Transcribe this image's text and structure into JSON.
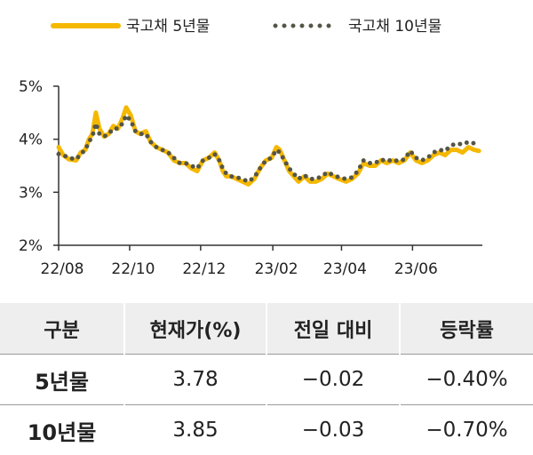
{
  "chart_data": {
    "type": "line",
    "title": "",
    "xlabel": "",
    "ylabel": "",
    "y_tick_labels": [
      "5%",
      "4%",
      "3%",
      "2%"
    ],
    "y_ticks": [
      5,
      4,
      3,
      2
    ],
    "ylim": [
      2,
      5
    ],
    "x_tick_labels": [
      "22/08",
      "22/10",
      "22/12",
      "23/02",
      "23/04",
      "23/06"
    ],
    "x_ticks": [
      "2022-08-01",
      "2022-10-01",
      "2022-12-01",
      "2023-02-01",
      "2023-04-01",
      "2023-06-01"
    ],
    "xlim": [
      "2022-08-01",
      "2023-07-31"
    ],
    "grid": false,
    "legend_position": "top",
    "series": [
      {
        "name": "국고채 5년물",
        "color": "#f5b800",
        "style": "solid",
        "points": [
          [
            "2022-08-01",
            3.85
          ],
          [
            "2022-08-05",
            3.7
          ],
          [
            "2022-08-10",
            3.62
          ],
          [
            "2022-08-16",
            3.6
          ],
          [
            "2022-08-20",
            3.75
          ],
          [
            "2022-08-24",
            3.8
          ],
          [
            "2022-08-27",
            4.0
          ],
          [
            "2022-08-30",
            4.1
          ],
          [
            "2022-09-02",
            4.5
          ],
          [
            "2022-09-05",
            4.2
          ],
          [
            "2022-09-09",
            4.05
          ],
          [
            "2022-09-13",
            4.1
          ],
          [
            "2022-09-17",
            4.25
          ],
          [
            "2022-09-21",
            4.2
          ],
          [
            "2022-09-25",
            4.4
          ],
          [
            "2022-09-28",
            4.6
          ],
          [
            "2022-10-02",
            4.45
          ],
          [
            "2022-10-06",
            4.15
          ],
          [
            "2022-10-10",
            4.1
          ],
          [
            "2022-10-15",
            4.15
          ],
          [
            "2022-10-19",
            3.95
          ],
          [
            "2022-10-24",
            3.85
          ],
          [
            "2022-10-29",
            3.8
          ],
          [
            "2022-11-03",
            3.75
          ],
          [
            "2022-11-08",
            3.6
          ],
          [
            "2022-11-13",
            3.55
          ],
          [
            "2022-11-18",
            3.55
          ],
          [
            "2022-11-23",
            3.45
          ],
          [
            "2022-11-28",
            3.4
          ],
          [
            "2022-12-03",
            3.6
          ],
          [
            "2022-12-08",
            3.65
          ],
          [
            "2022-12-13",
            3.75
          ],
          [
            "2022-12-17",
            3.6
          ],
          [
            "2022-12-20",
            3.4
          ],
          [
            "2022-12-23",
            3.3
          ],
          [
            "2022-12-27",
            3.3
          ],
          [
            "2023-01-01",
            3.25
          ],
          [
            "2023-01-06",
            3.2
          ],
          [
            "2023-01-11",
            3.15
          ],
          [
            "2023-01-16",
            3.25
          ],
          [
            "2023-01-21",
            3.45
          ],
          [
            "2023-01-26",
            3.6
          ],
          [
            "2023-01-31",
            3.65
          ],
          [
            "2023-02-04",
            3.85
          ],
          [
            "2023-02-07",
            3.8
          ],
          [
            "2023-02-11",
            3.6
          ],
          [
            "2023-02-15",
            3.4
          ],
          [
            "2023-02-19",
            3.3
          ],
          [
            "2023-02-23",
            3.2
          ],
          [
            "2023-02-28",
            3.3
          ],
          [
            "2023-03-05",
            3.2
          ],
          [
            "2023-03-10",
            3.2
          ],
          [
            "2023-03-15",
            3.25
          ],
          [
            "2023-03-20",
            3.35
          ],
          [
            "2023-03-25",
            3.3
          ],
          [
            "2023-03-30",
            3.25
          ],
          [
            "2023-04-05",
            3.2
          ],
          [
            "2023-04-10",
            3.25
          ],
          [
            "2023-04-15",
            3.35
          ],
          [
            "2023-04-20",
            3.55
          ],
          [
            "2023-04-25",
            3.5
          ],
          [
            "2023-04-30",
            3.5
          ],
          [
            "2023-05-05",
            3.6
          ],
          [
            "2023-05-10",
            3.55
          ],
          [
            "2023-05-15",
            3.6
          ],
          [
            "2023-05-20",
            3.55
          ],
          [
            "2023-05-25",
            3.6
          ],
          [
            "2023-05-30",
            3.75
          ],
          [
            "2023-06-04",
            3.6
          ],
          [
            "2023-06-09",
            3.55
          ],
          [
            "2023-06-14",
            3.6
          ],
          [
            "2023-06-19",
            3.7
          ],
          [
            "2023-06-24",
            3.75
          ],
          [
            "2023-06-29",
            3.7
          ],
          [
            "2023-07-04",
            3.8
          ],
          [
            "2023-07-09",
            3.8
          ],
          [
            "2023-07-14",
            3.75
          ],
          [
            "2023-07-19",
            3.85
          ],
          [
            "2023-07-24",
            3.8
          ],
          [
            "2023-07-28",
            3.78
          ]
        ]
      },
      {
        "name": "국고채 10년물",
        "color": "#555547",
        "style": "dotted",
        "points": [
          [
            "2022-08-01",
            3.72
          ],
          [
            "2022-08-05",
            3.7
          ],
          [
            "2022-08-10",
            3.65
          ],
          [
            "2022-08-16",
            3.62
          ],
          [
            "2022-08-20",
            3.72
          ],
          [
            "2022-08-24",
            3.8
          ],
          [
            "2022-08-27",
            3.95
          ],
          [
            "2022-08-30",
            4.05
          ],
          [
            "2022-09-02",
            4.3
          ],
          [
            "2022-09-05",
            4.1
          ],
          [
            "2022-09-09",
            4.05
          ],
          [
            "2022-09-13",
            4.1
          ],
          [
            "2022-09-17",
            4.2
          ],
          [
            "2022-09-21",
            4.2
          ],
          [
            "2022-09-25",
            4.3
          ],
          [
            "2022-09-28",
            4.45
          ],
          [
            "2022-10-02",
            4.35
          ],
          [
            "2022-10-06",
            4.15
          ],
          [
            "2022-10-10",
            4.1
          ],
          [
            "2022-10-15",
            4.1
          ],
          [
            "2022-10-19",
            3.95
          ],
          [
            "2022-10-24",
            3.85
          ],
          [
            "2022-10-29",
            3.8
          ],
          [
            "2022-11-03",
            3.75
          ],
          [
            "2022-11-08",
            3.65
          ],
          [
            "2022-11-13",
            3.55
          ],
          [
            "2022-11-18",
            3.55
          ],
          [
            "2022-11-23",
            3.5
          ],
          [
            "2022-11-28",
            3.45
          ],
          [
            "2022-12-03",
            3.6
          ],
          [
            "2022-12-08",
            3.65
          ],
          [
            "2022-12-13",
            3.72
          ],
          [
            "2022-12-17",
            3.6
          ],
          [
            "2022-12-20",
            3.45
          ],
          [
            "2022-12-23",
            3.35
          ],
          [
            "2022-12-27",
            3.3
          ],
          [
            "2023-01-01",
            3.28
          ],
          [
            "2023-01-06",
            3.25
          ],
          [
            "2023-01-11",
            3.2
          ],
          [
            "2023-01-16",
            3.28
          ],
          [
            "2023-01-21",
            3.45
          ],
          [
            "2023-01-26",
            3.6
          ],
          [
            "2023-01-31",
            3.65
          ],
          [
            "2023-02-04",
            3.8
          ],
          [
            "2023-02-07",
            3.75
          ],
          [
            "2023-02-11",
            3.6
          ],
          [
            "2023-02-15",
            3.45
          ],
          [
            "2023-02-19",
            3.35
          ],
          [
            "2023-02-23",
            3.25
          ],
          [
            "2023-02-28",
            3.32
          ],
          [
            "2023-03-05",
            3.25
          ],
          [
            "2023-03-10",
            3.25
          ],
          [
            "2023-03-15",
            3.3
          ],
          [
            "2023-03-20",
            3.38
          ],
          [
            "2023-03-25",
            3.32
          ],
          [
            "2023-03-30",
            3.28
          ],
          [
            "2023-04-05",
            3.25
          ],
          [
            "2023-04-10",
            3.28
          ],
          [
            "2023-04-15",
            3.4
          ],
          [
            "2023-04-20",
            3.6
          ],
          [
            "2023-04-25",
            3.55
          ],
          [
            "2023-04-30",
            3.55
          ],
          [
            "2023-05-05",
            3.62
          ],
          [
            "2023-05-10",
            3.58
          ],
          [
            "2023-05-15",
            3.62
          ],
          [
            "2023-05-20",
            3.58
          ],
          [
            "2023-05-25",
            3.62
          ],
          [
            "2023-05-30",
            3.78
          ],
          [
            "2023-06-04",
            3.65
          ],
          [
            "2023-06-09",
            3.6
          ],
          [
            "2023-06-14",
            3.65
          ],
          [
            "2023-06-19",
            3.75
          ],
          [
            "2023-06-24",
            3.8
          ],
          [
            "2023-06-29",
            3.78
          ],
          [
            "2023-07-04",
            3.88
          ],
          [
            "2023-07-09",
            3.92
          ],
          [
            "2023-07-14",
            3.9
          ],
          [
            "2023-07-19",
            3.95
          ],
          [
            "2023-07-24",
            3.92
          ],
          [
            "2023-07-28",
            3.85
          ]
        ]
      }
    ]
  },
  "table": {
    "headers": [
      "구분",
      "현재가(%)",
      "전일 대비",
      "등락률"
    ],
    "rows": [
      {
        "label": "5년물",
        "price": "3.78",
        "change": "−0.02",
        "rate": "−0.40%"
      },
      {
        "label": "10년물",
        "price": "3.85",
        "change": "−0.03",
        "rate": "−0.70%"
      }
    ]
  }
}
